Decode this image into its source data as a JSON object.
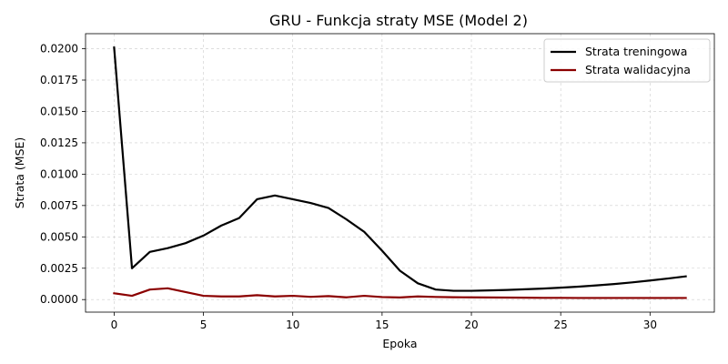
{
  "chart_data": {
    "type": "line",
    "title": "GRU - Funkcja straty MSE (Model 2)",
    "xlabel": "Epoka",
    "ylabel": "Strata (MSE)",
    "xlim": [
      -1.6,
      33.6
    ],
    "ylim": [
      -0.001,
      0.0212
    ],
    "xticks": [
      0,
      5,
      10,
      15,
      20,
      25,
      30
    ],
    "yticks": [
      0.0,
      0.0025,
      0.005,
      0.0075,
      0.01,
      0.0125,
      0.015,
      0.0175,
      0.02
    ],
    "ytick_labels": [
      "0.0000",
      "0.0025",
      "0.0050",
      "0.0075",
      "0.0100",
      "0.0125",
      "0.0150",
      "0.0175",
      "0.0200"
    ],
    "grid": true,
    "legend_position": "top-right",
    "x": [
      0,
      1,
      2,
      3,
      4,
      5,
      6,
      7,
      8,
      9,
      10,
      11,
      12,
      13,
      14,
      15,
      16,
      17,
      18,
      19,
      20,
      21,
      22,
      23,
      24,
      25,
      26,
      27,
      28,
      29,
      30,
      31,
      32
    ],
    "series": [
      {
        "name": "Strata treningowa",
        "color": "#000000",
        "values": [
          0.0201,
          0.0025,
          0.0038,
          0.0041,
          0.0045,
          0.0051,
          0.0059,
          0.0065,
          0.008,
          0.0083,
          0.008,
          0.0077,
          0.0073,
          0.0064,
          0.0054,
          0.0039,
          0.0023,
          0.0013,
          0.0008,
          0.0007,
          0.0007,
          0.00073,
          0.00077,
          0.00082,
          0.00088,
          0.00095,
          0.00103,
          0.00113,
          0.00124,
          0.00137,
          0.00152,
          0.00168,
          0.00185
        ]
      },
      {
        "name": "Strata walidacyjna",
        "color": "#8b0000",
        "values": [
          0.0005,
          0.0003,
          0.0008,
          0.0009,
          0.0006,
          0.0003,
          0.00025,
          0.00025,
          0.00035,
          0.00025,
          0.0003,
          0.00022,
          0.00028,
          0.00018,
          0.0003,
          0.0002,
          0.00017,
          0.00025,
          0.00021,
          0.00019,
          0.00018,
          0.00017,
          0.00016,
          0.00015,
          0.00014,
          0.00014,
          0.00013,
          0.00013,
          0.00013,
          0.00013,
          0.00013,
          0.00013,
          0.00013
        ]
      }
    ]
  }
}
